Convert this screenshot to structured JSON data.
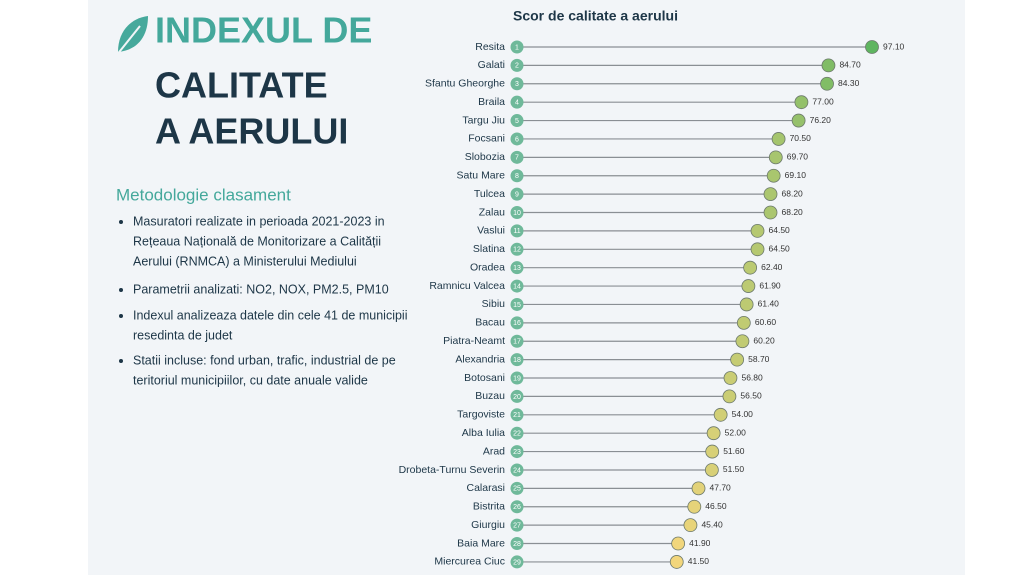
{
  "panel": {
    "title_lines": [
      "INDEXUL DE",
      "CALITATE",
      "A AERULUI"
    ],
    "section_title": "Metodologie clasament",
    "bullets": [
      [
        "Masuratori realizate in perioada 2021-2023 in",
        "Rețeaua Națională de Monitorizare a Calității",
        "Aerului (RNMCA) a Ministerului Mediului"
      ],
      [
        "Parametrii analizati: NO2, NOX, PM2.5, PM10"
      ],
      [
        "Indexul analizeaza datele din cele 41 de municipii",
        "resedinta de judet"
      ],
      [
        "Statii incluse: fond urban, trafic, industrial de pe",
        "teritoriul municipiilor, cu date anuale valide"
      ]
    ]
  },
  "chart_data": {
    "type": "lollipop",
    "title": "Scor de calitate a aerului",
    "categories": [
      "Resita",
      "Galati",
      "Sfantu Gheorghe",
      "Braila",
      "Targu Jiu",
      "Focsani",
      "Slobozia",
      "Satu Mare",
      "Tulcea",
      "Zalau",
      "Vaslui",
      "Slatina",
      "Oradea",
      "Ramnicu Valcea",
      "Sibiu",
      "Bacau",
      "Piatra-Neamt",
      "Alexandria",
      "Botosani",
      "Buzau",
      "Targoviste",
      "Alba Iulia",
      "Arad",
      "Drobeta-Turnu Severin",
      "Calarasi",
      "Bistrita",
      "Giurgiu",
      "Baia Mare",
      "Miercurea Ciuc"
    ],
    "ranks": [
      1,
      2,
      3,
      4,
      5,
      6,
      7,
      8,
      9,
      10,
      11,
      12,
      13,
      14,
      15,
      16,
      17,
      18,
      19,
      20,
      21,
      22,
      23,
      24,
      25,
      26,
      27,
      28,
      29
    ],
    "values": [
      97.1,
      84.7,
      84.3,
      77,
      76.2,
      70.5,
      69.7,
      69.1,
      68.2,
      68.2,
      64.5,
      64.5,
      62.4,
      61.9,
      61.4,
      60.6,
      60.2,
      58.7,
      56.8,
      56.5,
      54,
      52,
      51.6,
      51.5,
      47.7,
      46.5,
      45.4,
      41.9,
      41.5
    ],
    "value_labels": [
      "97.10",
      "84.70",
      "84.30",
      "77.00",
      "76.20",
      "70.50",
      "69.70",
      "69.10",
      "68.20",
      "68.20",
      "64.50",
      "64.50",
      "62.40",
      "61.90",
      "61.40",
      "60.60",
      "60.20",
      "58.70",
      "56.80",
      "56.50",
      "54.00",
      "52.00",
      "51.60",
      "51.50",
      "47.70",
      "46.50",
      "45.40",
      "41.90",
      "41.50"
    ],
    "color_scale": [
      "#f2d67c",
      "#5fb560"
    ],
    "rank_color": "#6fb99a"
  }
}
